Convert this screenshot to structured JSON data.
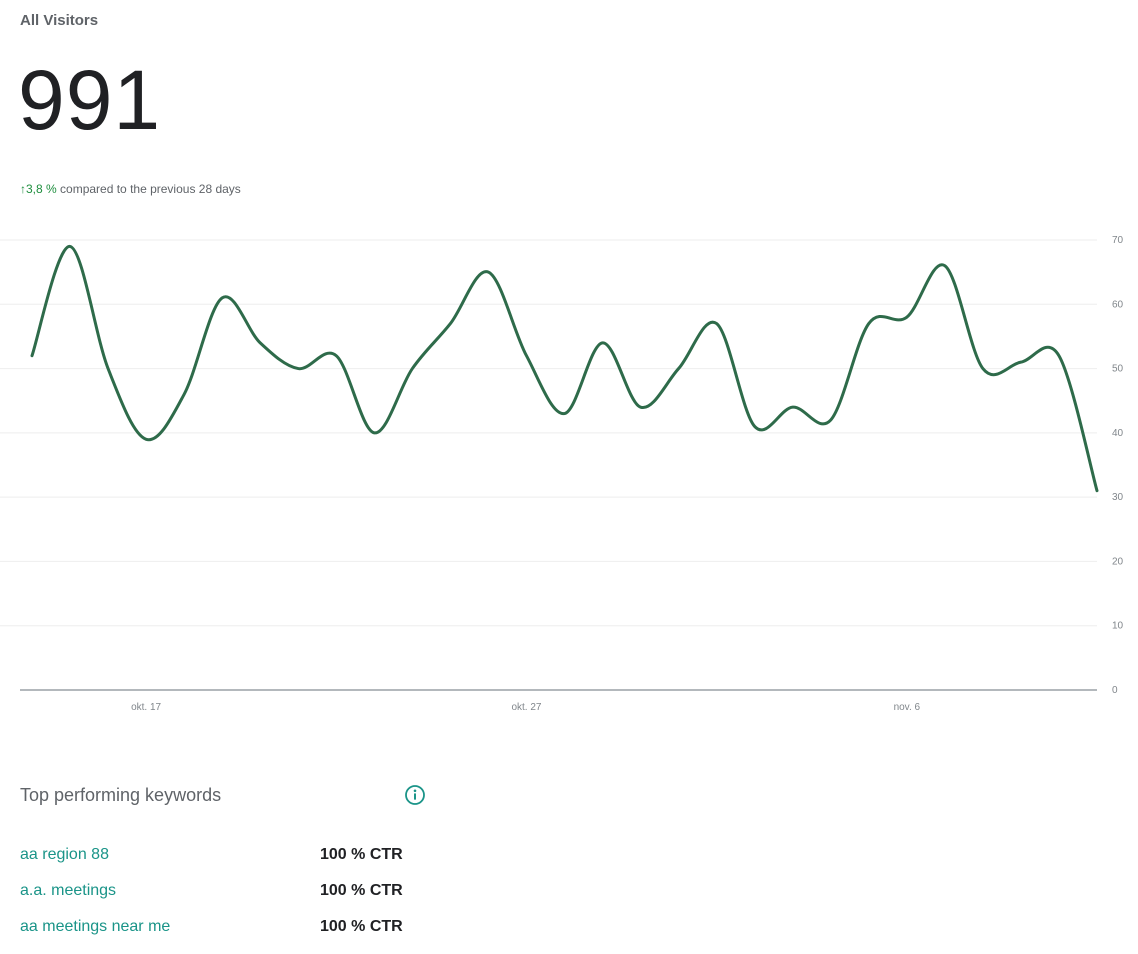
{
  "header": {
    "title": "All Visitors",
    "total": "991",
    "change_arrow": "↑",
    "change_value": "3,8 %",
    "change_text": "compared to the previous 28 days"
  },
  "colors": {
    "line": "#2e6b4a",
    "positive": "#1e8e3e",
    "link": "#1a9488"
  },
  "chart_data": {
    "type": "line",
    "x": [
      "okt. 14",
      "okt. 15",
      "okt. 16",
      "okt. 17",
      "okt. 18",
      "okt. 19",
      "okt. 20",
      "okt. 21",
      "okt. 22",
      "okt. 23",
      "okt. 24",
      "okt. 25",
      "okt. 26",
      "okt. 27",
      "okt. 28",
      "okt. 29",
      "okt. 30",
      "okt. 31",
      "nov. 1",
      "nov. 2",
      "nov. 3",
      "nov. 4",
      "nov. 5",
      "nov. 6",
      "nov. 7",
      "nov. 8",
      "nov. 9",
      "nov. 10",
      "nov. 11"
    ],
    "series": [
      {
        "values": [
          52,
          69,
          50,
          39,
          46,
          61,
          54,
          50,
          52,
          40,
          50,
          57,
          65,
          52,
          43,
          54,
          44,
          50,
          57,
          41,
          44,
          42,
          57,
          58,
          66,
          50,
          51,
          52,
          31
        ]
      }
    ],
    "x_tick_labels": [
      "okt. 17",
      "okt. 27",
      "nov. 6"
    ],
    "y_ticks": [
      0,
      10,
      20,
      30,
      40,
      50,
      60,
      70
    ],
    "ylim": [
      0,
      70
    ],
    "grid": true,
    "y_axis_position": "right",
    "legend": "none"
  },
  "keywords": {
    "header": "Top performing keywords",
    "info_icon": "info-icon",
    "items": [
      {
        "keyword": "aa region 88",
        "ctr": "100 % CTR"
      },
      {
        "keyword": "a.a. meetings",
        "ctr": "100 % CTR"
      },
      {
        "keyword": "aa meetings near me",
        "ctr": "100 % CTR"
      }
    ]
  }
}
